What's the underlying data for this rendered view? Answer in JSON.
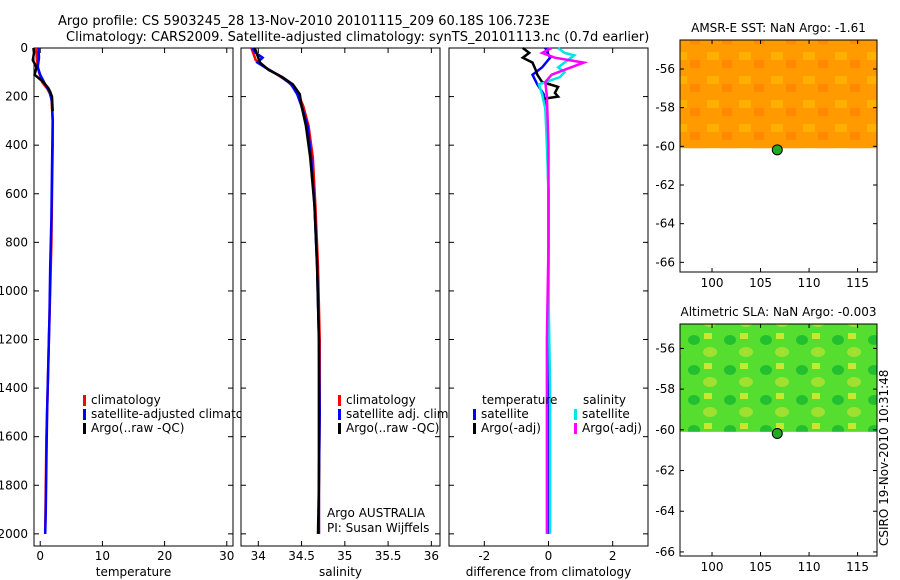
{
  "header": {
    "line1": "Argo profile: CS 5903245_28 13-Nov-2010 20101115_209 60.18S 106.723E",
    "line2": "Climatology: CARS2009. Satellite-adjusted climatology: synTS_20101113.nc (0.7d earlier)"
  },
  "side_label": "CSIRO 19-Nov-2010 10:31:48",
  "chart_data": [
    {
      "type": "line",
      "id": "temperature",
      "xlabel": "temperature",
      "xlim": [
        -1,
        31
      ],
      "xticks": [
        0,
        10,
        20,
        30
      ],
      "ylim": [
        2050,
        0
      ],
      "yticks": [
        0,
        200,
        400,
        600,
        800,
        1000,
        1200,
        1400,
        1600,
        1800,
        2000
      ],
      "legend": [
        "climatology",
        "satellite-adjusted climatolog",
        "Argo(..raw -QC)"
      ],
      "series": [
        {
          "name": "climatology",
          "color": "#ff0000",
          "points": [
            [
              -0.8,
              0
            ],
            [
              -0.6,
              20
            ],
            [
              -0.5,
              60
            ],
            [
              -0.2,
              100
            ],
            [
              0.3,
              140
            ],
            [
              1.2,
              170
            ],
            [
              1.8,
              200
            ],
            [
              2.0,
              300
            ],
            [
              2.0,
              400
            ],
            [
              1.9,
              600
            ],
            [
              1.8,
              800
            ],
            [
              1.6,
              1000
            ],
            [
              1.4,
              1200
            ],
            [
              1.2,
              1400
            ],
            [
              1.0,
              1600
            ],
            [
              0.9,
              1800
            ],
            [
              0.8,
              2000
            ]
          ]
        },
        {
          "name": "satellite-adjusted climatology",
          "color": "#0000ff",
          "points": [
            [
              -0.3,
              0
            ],
            [
              -0.2,
              40
            ],
            [
              -0.4,
              80
            ],
            [
              0,
              110
            ],
            [
              0.8,
              150
            ],
            [
              1.5,
              180
            ],
            [
              1.9,
              220
            ],
            [
              2.0,
              300
            ],
            [
              1.9,
              500
            ],
            [
              1.8,
              700
            ],
            [
              1.6,
              900
            ],
            [
              1.5,
              1100
            ],
            [
              1.3,
              1300
            ],
            [
              1.1,
              1500
            ],
            [
              1.0,
              1700
            ],
            [
              0.9,
              1900
            ],
            [
              0.8,
              2000
            ]
          ]
        },
        {
          "name": "Argo(..raw -QC)",
          "color": "#000000",
          "points": [
            [
              -1.1,
              0
            ],
            [
              -1.0,
              20
            ],
            [
              -1.2,
              50
            ],
            [
              -0.6,
              80
            ],
            [
              -0.9,
              110
            ],
            [
              0.5,
              140
            ],
            [
              1.3,
              165
            ],
            [
              1.6,
              180
            ],
            [
              1.9,
              200
            ],
            [
              2.0,
              260
            ]
          ]
        }
      ]
    },
    {
      "type": "line",
      "id": "salinity",
      "xlabel": "salinity",
      "xlim": [
        33.8,
        36.1
      ],
      "xticks": [
        34,
        34.5,
        35,
        35.5,
        36
      ],
      "ylim": [
        2050,
        0
      ],
      "legend": [
        "climatology",
        "satellite adj. clim.",
        "Argo(..raw -QC)"
      ],
      "annotation": [
        "Argo AUSTRALIA",
        "PI: Susan Wijffels"
      ],
      "series": [
        {
          "name": "climatology",
          "color": "#ff0000",
          "points": [
            [
              33.92,
              0
            ],
            [
              33.95,
              30
            ],
            [
              33.97,
              50
            ],
            [
              34.08,
              80
            ],
            [
              34.22,
              110
            ],
            [
              34.35,
              140
            ],
            [
              34.45,
              180
            ],
            [
              34.52,
              240
            ],
            [
              34.58,
              320
            ],
            [
              34.63,
              450
            ],
            [
              34.66,
              650
            ],
            [
              34.69,
              900
            ],
            [
              34.71,
              1200
            ],
            [
              34.71,
              1500
            ],
            [
              34.7,
              1800
            ],
            [
              34.7,
              2000
            ]
          ]
        },
        {
          "name": "satellite adj. clim.",
          "color": "#0000ff",
          "points": [
            [
              33.93,
              0
            ],
            [
              33.97,
              20
            ],
            [
              34.05,
              40
            ],
            [
              33.99,
              60
            ],
            [
              34.1,
              85
            ],
            [
              34.25,
              115
            ],
            [
              34.38,
              150
            ],
            [
              34.45,
              190
            ],
            [
              34.5,
              240
            ],
            [
              34.57,
              320
            ],
            [
              34.61,
              450
            ],
            [
              34.65,
              650
            ],
            [
              34.68,
              900
            ],
            [
              34.7,
              1200
            ],
            [
              34.71,
              1500
            ],
            [
              34.7,
              1800
            ],
            [
              34.7,
              2000
            ]
          ]
        },
        {
          "name": "Argo(..raw -QC)",
          "color": "#000000",
          "points": [
            [
              33.96,
              0
            ],
            [
              33.99,
              30
            ],
            [
              34.02,
              60
            ],
            [
              34.12,
              90
            ],
            [
              34.28,
              120
            ],
            [
              34.4,
              150
            ],
            [
              34.48,
              190
            ],
            [
              34.5,
              240
            ],
            [
              34.55,
              320
            ],
            [
              34.6,
              450
            ],
            [
              34.65,
              650
            ],
            [
              34.68,
              900
            ],
            [
              34.7,
              1200
            ],
            [
              34.7,
              1500
            ],
            [
              34.7,
              1800
            ],
            [
              34.69,
              2000
            ]
          ]
        }
      ]
    },
    {
      "type": "line",
      "id": "difference",
      "xlabel": "difference from climatology",
      "xlim": [
        -3.1,
        3.1
      ],
      "xticks": [
        -2,
        0,
        2
      ],
      "ylim": [
        2050,
        0
      ],
      "legend_title_left": "temperature",
      "legend_title_right": "salinity",
      "legend": [
        "satellite",
        "Argo(-adj)",
        "satellite",
        "Argo(-adj)"
      ],
      "series": [
        {
          "name": "temperature satellite",
          "color": "#0000ff",
          "points": [
            [
              -0.1,
              0
            ],
            [
              0.05,
              40
            ],
            [
              -0.2,
              80
            ],
            [
              -0.5,
              110
            ],
            [
              -0.35,
              150
            ],
            [
              -0.15,
              190
            ],
            [
              -0.05,
              300
            ],
            [
              0,
              600
            ],
            [
              0,
              1000
            ],
            [
              0,
              1400
            ],
            [
              0,
              2000
            ]
          ]
        },
        {
          "name": "temperature Argo(-adj)",
          "color": "#000000",
          "points": [
            [
              -0.8,
              0
            ],
            [
              -0.6,
              20
            ],
            [
              -0.8,
              40
            ],
            [
              -0.5,
              60
            ],
            [
              -0.4,
              90
            ],
            [
              -0.35,
              110
            ],
            [
              -0.2,
              140
            ],
            [
              0.3,
              160
            ],
            [
              0.2,
              185
            ],
            [
              0.3,
              200
            ],
            [
              -0.2,
              210
            ]
          ]
        },
        {
          "name": "salinity satellite",
          "color": "#00e5e5",
          "points": [
            [
              0.3,
              0
            ],
            [
              0.5,
              20
            ],
            [
              0.8,
              30
            ],
            [
              0.6,
              50
            ],
            [
              0.3,
              80
            ],
            [
              0.5,
              100
            ],
            [
              0.35,
              120
            ],
            [
              -0.3,
              150
            ],
            [
              -0.2,
              190
            ],
            [
              -0.1,
              250
            ],
            [
              -0.05,
              400
            ],
            [
              0,
              600
            ],
            [
              0,
              1000
            ],
            [
              0.05,
              1400
            ],
            [
              0.05,
              2000
            ]
          ]
        },
        {
          "name": "salinity Argo(-adj)",
          "color": "#ff00ff",
          "points": [
            [
              0.1,
              0
            ],
            [
              -0.2,
              20
            ],
            [
              0.2,
              40
            ],
            [
              1.1,
              60
            ],
            [
              0.6,
              85
            ],
            [
              0.1,
              110
            ],
            [
              -0.1,
              140
            ],
            [
              -0.05,
              200
            ],
            [
              0,
              400
            ],
            [
              0,
              800
            ],
            [
              -0.05,
              1200
            ],
            [
              -0.05,
              1600
            ],
            [
              -0.05,
              2000
            ]
          ]
        }
      ]
    },
    {
      "type": "heatmap",
      "id": "sst-map",
      "title": "AMSR-E SST: NaN  Argo: -1.61",
      "xlim": [
        96.7,
        117
      ],
      "xticks": [
        100,
        105,
        110,
        115
      ],
      "ylim": [
        -66.5,
        -54.5
      ],
      "yticks": [
        -56,
        -58,
        -60,
        -62,
        -64,
        -66
      ],
      "data_lat_range": [
        -60.1,
        -54.5
      ],
      "float_position": {
        "lon": 106.723,
        "lat": -60.18
      }
    },
    {
      "type": "heatmap",
      "id": "sla-map",
      "title": "Altimetric SLA: NaN  Argo: -0.003",
      "xlim": [
        96.7,
        117
      ],
      "xticks": [
        100,
        105,
        110,
        115
      ],
      "ylim": [
        -66.2,
        -54.8
      ],
      "yticks": [
        -56,
        -58,
        -60,
        -62,
        -64,
        -66
      ],
      "data_lat_range": [
        -60.1,
        -54.8
      ],
      "float_position": {
        "lon": 106.723,
        "lat": -60.18
      }
    }
  ]
}
